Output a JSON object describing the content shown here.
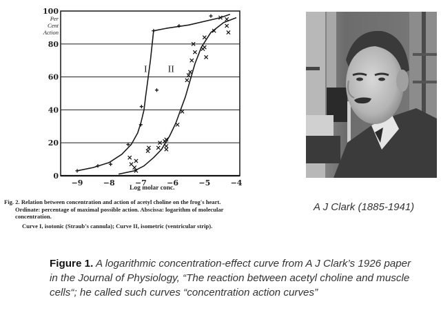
{
  "chart_data": {
    "type": "line",
    "title": "",
    "xlabel": "Log molar conc.",
    "ylabel": "Per Cent Action",
    "ylabel_lines": [
      "Per",
      "Cent",
      "Action"
    ],
    "xlim": [
      -9.5,
      -4
    ],
    "ylim": [
      0,
      100
    ],
    "xticks": [
      -9,
      -8,
      -7,
      -6,
      -5,
      -4
    ],
    "xtick_labels": [
      "−9",
      "−8",
      "−7",
      "−6",
      "−5",
      "−4"
    ],
    "yticks": [
      0,
      20,
      40,
      60,
      80,
      100
    ],
    "ytick_labels": [
      "0",
      "20",
      "40",
      "60",
      "80",
      "100"
    ],
    "grid": true,
    "series": [
      {
        "name": "I",
        "description": "isotonic (Straub's cannula)",
        "marker": "+",
        "curve": [
          [
            -9,
            3
          ],
          [
            -8.5,
            5
          ],
          [
            -8,
            8
          ],
          [
            -7.6,
            13
          ],
          [
            -7.3,
            19
          ],
          [
            -7.1,
            26
          ],
          [
            -7,
            32
          ],
          [
            -6.9,
            40
          ],
          [
            -6.85,
            48
          ],
          [
            -6.7,
            70
          ],
          [
            -6.6,
            88
          ],
          [
            -6.2,
            89.5
          ],
          [
            -5.5,
            91.5
          ],
          [
            -4.5,
            96
          ],
          [
            -4.2,
            98
          ]
        ],
        "points": [
          [
            -9,
            3
          ],
          [
            -8.35,
            6
          ],
          [
            -7.95,
            7
          ],
          [
            -7.4,
            19
          ],
          [
            -7.0,
            31
          ],
          [
            -6.98,
            42
          ],
          [
            -6.6,
            88
          ],
          [
            -6.5,
            52
          ],
          [
            -5.8,
            91
          ],
          [
            -4.8,
            97
          ]
        ]
      },
      {
        "name": "II",
        "description": "isometric (ventricular strip)",
        "marker": "x",
        "curve": [
          [
            -7.7,
            1
          ],
          [
            -7.2,
            3
          ],
          [
            -6.9,
            6
          ],
          [
            -6.6,
            11
          ],
          [
            -6.35,
            16
          ],
          [
            -6.1,
            24
          ],
          [
            -5.9,
            32
          ],
          [
            -5.75,
            40
          ],
          [
            -5.6,
            48
          ],
          [
            -5.45,
            58
          ],
          [
            -5.3,
            68
          ],
          [
            -5.1,
            78
          ],
          [
            -4.8,
            87
          ],
          [
            -4.4,
            93
          ],
          [
            -4,
            96
          ]
        ],
        "points": [
          [
            -7.15,
            3
          ],
          [
            -7.2,
            5
          ],
          [
            -7.3,
            7
          ],
          [
            -7.15,
            9
          ],
          [
            -7.35,
            11
          ],
          [
            -6.75,
            17
          ],
          [
            -6.78,
            15
          ],
          [
            -6.45,
            17
          ],
          [
            -6.4,
            20
          ],
          [
            -6.25,
            21
          ],
          [
            -6.2,
            22
          ],
          [
            -6.2,
            18
          ],
          [
            -6.2,
            16
          ],
          [
            -5.85,
            31
          ],
          [
            -5.7,
            39
          ],
          [
            -5.55,
            58
          ],
          [
            -5.5,
            61
          ],
          [
            -5.45,
            63
          ],
          [
            -5.4,
            70
          ],
          [
            -5.3,
            75
          ],
          [
            -5.35,
            80
          ],
          [
            -5.05,
            77
          ],
          [
            -5.0,
            78
          ],
          [
            -5.0,
            84
          ],
          [
            -4.95,
            72
          ],
          [
            -4.7,
            88
          ],
          [
            -4.3,
            91
          ],
          [
            -4.3,
            95
          ],
          [
            -4.25,
            87
          ],
          [
            -4.5,
            96
          ]
        ]
      }
    ],
    "annotations": [
      {
        "text": "I",
        "x": -6.85,
        "y": 63
      },
      {
        "text": "II",
        "x": -6.05,
        "y": 63
      }
    ]
  },
  "chart": {
    "ylabel_lines": [
      "Per",
      "Cent",
      "Action"
    ],
    "xlabel": "Log molar conc.",
    "curve_labels": [
      "I",
      "II"
    ]
  },
  "original_caption": {
    "line1": "Fig. 2.  Relation between concentration and action of acetyl choline on the frog's heart.",
    "line2": "Ordinate: percentage of maximal possible action.  Abscissa: logarithm of molecular",
    "line3": "concentration.",
    "line4": "Curve I, isotonic (Straub's cannula); Curve II, isometric (ventricular strip)."
  },
  "portrait": {
    "subject": "A J Clark portrait photograph",
    "caption": "A J Clark (1885-1941)"
  },
  "figure_caption": {
    "lead": "Figure 1.",
    "body": " A logarithmic concentration-effect curve from A J Clark’s 1926 paper in the Journal of Physiology, “The reaction between acetyl choline and muscle cells“; he called such curves “concentration action curves”"
  }
}
